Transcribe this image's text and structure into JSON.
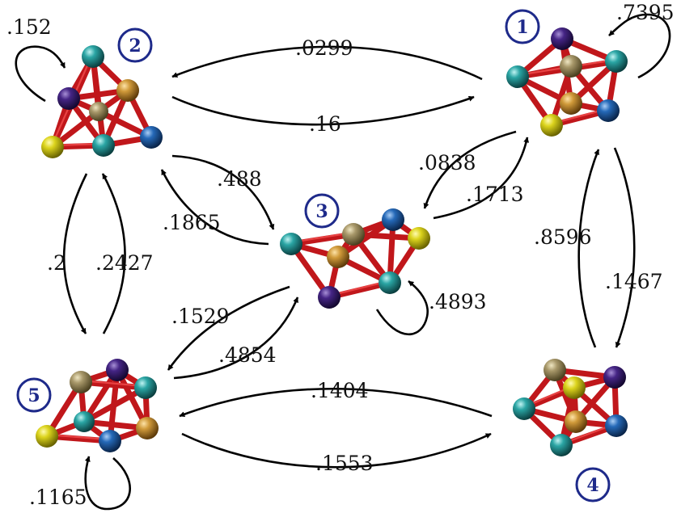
{
  "colors": {
    "bond": "#c0171b",
    "badge": "#1e2a8a",
    "atom_teal": "#1b8f90",
    "atom_purple": "#3a1f6e",
    "atom_gold": "#c28a30",
    "atom_olive": "#9a8b55",
    "atom_blue": "#1f5fa8",
    "atom_yellow": "#d8d21a"
  },
  "states": [
    {
      "id": "1",
      "label": "1"
    },
    {
      "id": "2",
      "label": "2"
    },
    {
      "id": "3",
      "label": "3"
    },
    {
      "id": "4",
      "label": "4"
    },
    {
      "id": "5",
      "label": "5"
    }
  ],
  "transitions": [
    {
      "from": "2",
      "to": "2",
      "label": ".152"
    },
    {
      "from": "1",
      "to": "1",
      "label": ".7395"
    },
    {
      "from": "1",
      "to": "2",
      "label": ".0299"
    },
    {
      "from": "2",
      "to": "1",
      "label": ".16"
    },
    {
      "from": "2",
      "to": "3",
      "label": ".488"
    },
    {
      "from": "3",
      "to": "2",
      "label": ".1865"
    },
    {
      "from": "1",
      "to": "3",
      "label": ".0838"
    },
    {
      "from": "3",
      "to": "1",
      "label": ".1713"
    },
    {
      "from": "4",
      "to": "1",
      "label": ".8596"
    },
    {
      "from": "1",
      "to": "4",
      "label": ".1467"
    },
    {
      "from": "2",
      "to": "5",
      "label": ".2"
    },
    {
      "from": "5",
      "to": "2",
      "label": ".2427"
    },
    {
      "from": "3",
      "to": "3",
      "label": ".4893"
    },
    {
      "from": "3",
      "to": "5",
      "label": ".1529"
    },
    {
      "from": "5",
      "to": "3",
      "label": ".4854"
    },
    {
      "from": "4",
      "to": "5",
      "label": ".1404"
    },
    {
      "from": "5",
      "to": "4",
      "label": ".1553"
    },
    {
      "from": "5",
      "to": "5",
      "label": ".1165"
    }
  ]
}
